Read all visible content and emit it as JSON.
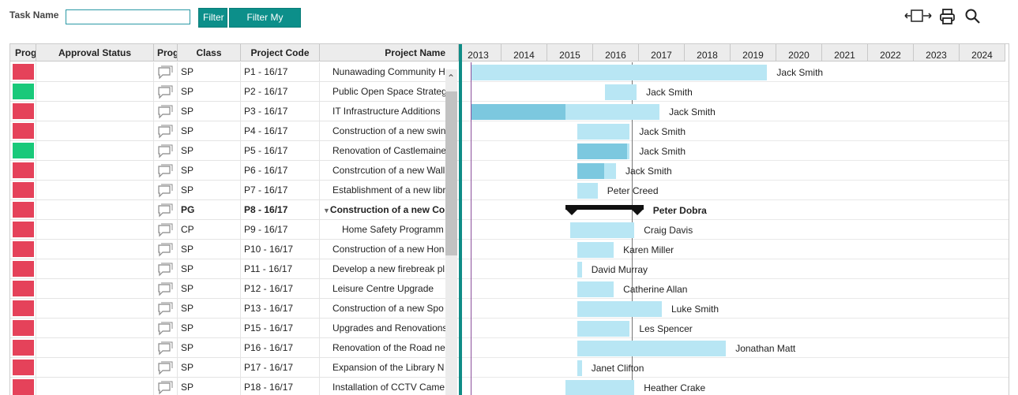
{
  "toolbar": {
    "task_name_label": "Task Name",
    "task_name_value": "",
    "filter_label": "Filter",
    "filter_my_label": "Filter My Tasks",
    "icons": [
      "expand-icon",
      "print-icon",
      "search-icon"
    ]
  },
  "columns": [
    "Prog",
    "Approval Status",
    "Prog",
    "Class",
    "Project Code",
    "Project Name"
  ],
  "years": [
    "2013",
    "2014",
    "2015",
    "2016",
    "2017",
    "2018",
    "2019",
    "2020",
    "2021",
    "2022",
    "2023",
    "2024"
  ],
  "colors": {
    "red": "#e5425a",
    "green": "#19c97a",
    "accent": "#0c8f8a",
    "bar": "#b8e6f4",
    "bar_done": "#7cc8df"
  },
  "rows": [
    {
      "status": "red",
      "class": "SP",
      "code": "P1 - 16/17",
      "name": "Nunawading Community H",
      "owner": "Jack Smith",
      "start": 2013.0,
      "end": 2019.8,
      "progress": 0
    },
    {
      "status": "green",
      "class": "SP",
      "code": "P2 - 16/17",
      "name": "Public Open Space Strateg",
      "owner": "Jack Smith",
      "start": 2016.25,
      "end": 2016.95,
      "progress": 0
    },
    {
      "status": "red",
      "class": "SP",
      "code": "P3 - 16/17",
      "name": "IT Infrastructure Additions",
      "owner": "Jack Smith",
      "start": 2013.0,
      "end": 2017.45,
      "progress": 0.5
    },
    {
      "status": "red",
      "class": "SP",
      "code": "P4 - 16/17",
      "name": "Construction of a new swin",
      "owner": "Jack Smith",
      "start": 2015.65,
      "end": 2016.8,
      "progress": 0
    },
    {
      "status": "green",
      "class": "SP",
      "code": "P5 - 16/17",
      "name": "Renovation of Castlemaine",
      "owner": "Jack Smith",
      "start": 2015.65,
      "end": 2016.8,
      "progress": 0.95
    },
    {
      "status": "red",
      "class": "SP",
      "code": "P6 - 16/17",
      "name": "Constrcution of a new Wall",
      "owner": "Jack Smith",
      "start": 2015.65,
      "end": 2016.5,
      "progress": 0.7
    },
    {
      "status": "red",
      "class": "SP",
      "code": "P7 - 16/17",
      "name": "Establishment of a new libr",
      "owner": "Peter Creed",
      "start": 2015.65,
      "end": 2016.1,
      "progress": 0
    },
    {
      "status": "red",
      "class": "PG",
      "code": "P8 - 16/17",
      "name": "Construction of a new Cor",
      "owner": "Peter Dobra",
      "start": 2015.4,
      "end": 2017.1,
      "progress": 0,
      "group": true
    },
    {
      "status": "red",
      "class": "CP",
      "code": "P9 - 16/17",
      "name": "Home Safety Programm",
      "owner": "Craig Davis",
      "start": 2015.5,
      "end": 2016.9,
      "progress": 0,
      "child": true
    },
    {
      "status": "red",
      "class": "SP",
      "code": "P10 - 16/17",
      "name": "Construction of a new Hon",
      "owner": "Karen Miller",
      "start": 2015.65,
      "end": 2016.45,
      "progress": 0
    },
    {
      "status": "red",
      "class": "SP",
      "code": "P11 - 16/17",
      "name": "Develop a new firebreak pl",
      "owner": "David Murray",
      "start": 2015.65,
      "end": 2015.75,
      "progress": 0
    },
    {
      "status": "red",
      "class": "SP",
      "code": "P12 - 16/17",
      "name": "Leisure Centre Upgrade",
      "owner": "Catherine Allan",
      "start": 2015.65,
      "end": 2016.45,
      "progress": 0
    },
    {
      "status": "red",
      "class": "SP",
      "code": "P13 - 16/17",
      "name": "Construction of a new Spo",
      "owner": "Luke Smith",
      "start": 2015.65,
      "end": 2017.5,
      "progress": 0
    },
    {
      "status": "red",
      "class": "SP",
      "code": "P15 - 16/17",
      "name": "Upgrades and Renovations",
      "owner": "Les Spencer",
      "start": 2015.65,
      "end": 2016.8,
      "progress": 0
    },
    {
      "status": "red",
      "class": "SP",
      "code": "P16 - 16/17",
      "name": "Renovation of the Road ne",
      "owner": "Jonathan Matt",
      "start": 2015.65,
      "end": 2018.9,
      "progress": 0
    },
    {
      "status": "red",
      "class": "SP",
      "code": "P17 - 16/17",
      "name": "Expansion of the Library N",
      "owner": "Janet Clifton",
      "start": 2015.65,
      "end": 2015.75,
      "progress": 0
    },
    {
      "status": "red",
      "class": "SP",
      "code": "P18 - 16/17",
      "name": "Installation of CCTV Came",
      "owner": "Heather Crake",
      "start": 2015.4,
      "end": 2016.9,
      "progress": 0
    }
  ]
}
